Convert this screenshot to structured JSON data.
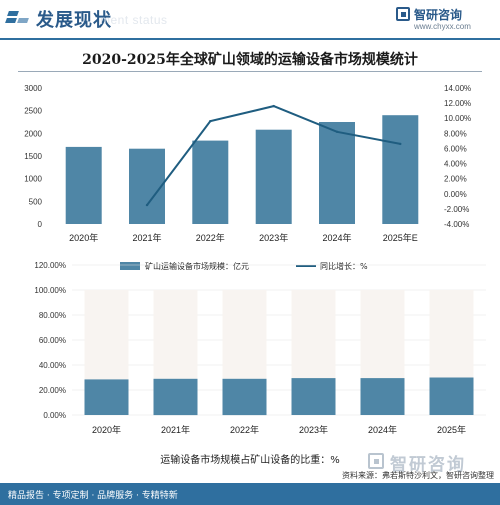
{
  "header": {
    "title": "发展现状",
    "subtitle": "ment status",
    "brand_name": "智研咨询",
    "brand_url": "www.chyxx.com"
  },
  "colors": {
    "bar": "#4f86a6",
    "line": "#1f5d80",
    "stack_bg": "#f8f4f1",
    "accent": "#2f6f9f"
  },
  "chart_data": [
    {
      "type": "bar",
      "title": "2020-2025年全球矿山领域的运输设备市场规模统计",
      "categories": [
        "2020年",
        "2021年",
        "2022年",
        "2023年",
        "2024年",
        "2025年E"
      ],
      "series": [
        {
          "name": "矿山运输设备市场规模：亿元",
          "type": "bar",
          "axis": "left",
          "values": [
            1700,
            1660,
            1840,
            2080,
            2250,
            2400
          ]
        },
        {
          "name": "同比增长：%",
          "type": "line",
          "axis": "right",
          "values": [
            null,
            -1.5,
            9.6,
            11.6,
            8.2,
            6.6
          ]
        }
      ],
      "ylim": [
        0,
        3000
      ],
      "yticks": [
        "3000",
        "2500",
        "2000",
        "1500",
        "1000",
        "500",
        "0"
      ],
      "y2lim": [
        -4,
        14
      ],
      "y2ticks": [
        "14.00%",
        "12.00%",
        "10.00%",
        "8.00%",
        "6.00%",
        "4.00%",
        "2.00%",
        "0.00%",
        "-2.00%",
        "-4.00%"
      ],
      "legend": "bottom"
    },
    {
      "type": "bar",
      "title": "运输设备市场规模占矿山设备的比重：%",
      "categories": [
        "2020年",
        "2021年",
        "2022年",
        "2023年",
        "2024年",
        "2025年E"
      ],
      "values": [
        28.5,
        29,
        29,
        29.5,
        29.5,
        30
      ],
      "ylim": [
        0,
        120
      ],
      "yticks": [
        "120.00%",
        "100.00%",
        "80.00%",
        "60.00%",
        "40.00%",
        "20.00%",
        "0.00%"
      ],
      "xticks": [
        "2020年",
        "2021年",
        "2022年",
        "2023年",
        "2024年",
        "2025年"
      ]
    }
  ],
  "watermark": "智研咨询",
  "source": "资料来源：弗若斯特沙利文，智研咨询整理",
  "footer": "精品报告 · 专项定制 · 品牌服务 · 专精特新"
}
